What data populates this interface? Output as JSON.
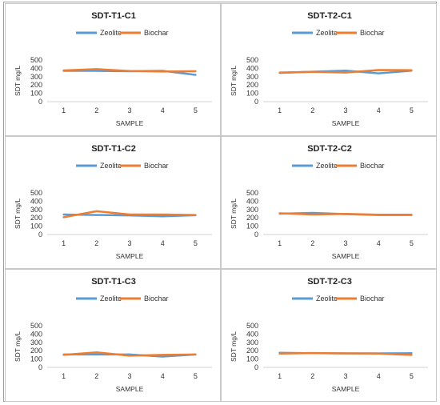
{
  "chart_data": [
    {
      "type": "line",
      "title": "SDT-T1-C1",
      "xlabel": "SAMPLE",
      "ylabel": "SDT mg/L",
      "categories": [
        "1",
        "2",
        "3",
        "4",
        "5"
      ],
      "yticks": [
        "0",
        "100",
        "200",
        "300",
        "400",
        "500"
      ],
      "ylim": [
        0,
        500
      ],
      "legend_position": "top",
      "series": [
        {
          "name": "Zeolite",
          "color": "#5b9bd5",
          "values": [
            370,
            370,
            365,
            370,
            322
          ]
        },
        {
          "name": "Biochar",
          "color": "#ed7d31",
          "values": [
            375,
            390,
            368,
            362,
            365
          ]
        }
      ]
    },
    {
      "type": "line",
      "title": "SDT-T2-C1",
      "xlabel": "SAMPLE",
      "ylabel": "SDT mg/L",
      "categories": [
        "1",
        "2",
        "3",
        "4",
        "5"
      ],
      "yticks": [
        "0",
        "100",
        "200",
        "300",
        "400",
        "500"
      ],
      "ylim": [
        0,
        500
      ],
      "legend_position": "top",
      "series": [
        {
          "name": "Zeolite",
          "color": "#5b9bd5",
          "values": [
            345,
            360,
            372,
            340,
            372
          ]
        },
        {
          "name": "Biochar",
          "color": "#ed7d31",
          "values": [
            350,
            358,
            350,
            380,
            378
          ]
        }
      ]
    },
    {
      "type": "line",
      "title": "SDT-T1-C2",
      "xlabel": "SAMPLE",
      "ylabel": "SDT mg/L",
      "categories": [
        "1",
        "2",
        "3",
        "4",
        "5"
      ],
      "yticks": [
        "0",
        "100",
        "200",
        "300",
        "400",
        "500"
      ],
      "ylim": [
        0,
        500
      ],
      "legend_position": "top",
      "series": [
        {
          "name": "Zeolite",
          "color": "#5b9bd5",
          "values": [
            240,
            235,
            230,
            218,
            232
          ]
        },
        {
          "name": "Biochar",
          "color": "#ed7d31",
          "values": [
            208,
            280,
            240,
            240,
            235
          ]
        }
      ]
    },
    {
      "type": "line",
      "title": "SDT-T2-C2",
      "xlabel": "SAMPLE",
      "ylabel": "SDT mg/L",
      "categories": [
        "1",
        "2",
        "3",
        "4",
        "5"
      ],
      "yticks": [
        "0",
        "100",
        "200",
        "300",
        "400",
        "500"
      ],
      "ylim": [
        0,
        500
      ],
      "legend_position": "top",
      "series": [
        {
          "name": "Zeolite",
          "color": "#5b9bd5",
          "values": [
            250,
            260,
            245,
            235,
            235
          ]
        },
        {
          "name": "Biochar",
          "color": "#ed7d31",
          "values": [
            255,
            240,
            248,
            238,
            238
          ]
        }
      ]
    },
    {
      "type": "line",
      "title": "SDT-T1-C3",
      "xlabel": "SAMPLE",
      "ylabel": "SDT mg/L",
      "categories": [
        "1",
        "2",
        "3",
        "4",
        "5"
      ],
      "yticks": [
        "0",
        "100",
        "200",
        "300",
        "400",
        "500"
      ],
      "ylim": [
        0,
        500
      ],
      "legend_position": "top",
      "series": [
        {
          "name": "Zeolite",
          "color": "#5b9bd5",
          "values": [
            155,
            155,
            155,
            130,
            155
          ]
        },
        {
          "name": "Biochar",
          "color": "#ed7d31",
          "values": [
            150,
            180,
            140,
            150,
            155
          ]
        }
      ]
    },
    {
      "type": "line",
      "title": "SDT-T2-C3",
      "xlabel": "SAMPLE",
      "ylabel": "SDT mg/L",
      "categories": [
        "1",
        "2",
        "3",
        "4",
        "5"
      ],
      "yticks": [
        "0",
        "100",
        "200",
        "300",
        "400",
        "500"
      ],
      "ylim": [
        0,
        500
      ],
      "legend_position": "top",
      "series": [
        {
          "name": "Zeolite",
          "color": "#5b9bd5",
          "values": [
            175,
            170,
            168,
            168,
            170
          ]
        },
        {
          "name": "Biochar",
          "color": "#ed7d31",
          "values": [
            165,
            172,
            168,
            165,
            150
          ]
        }
      ]
    }
  ]
}
